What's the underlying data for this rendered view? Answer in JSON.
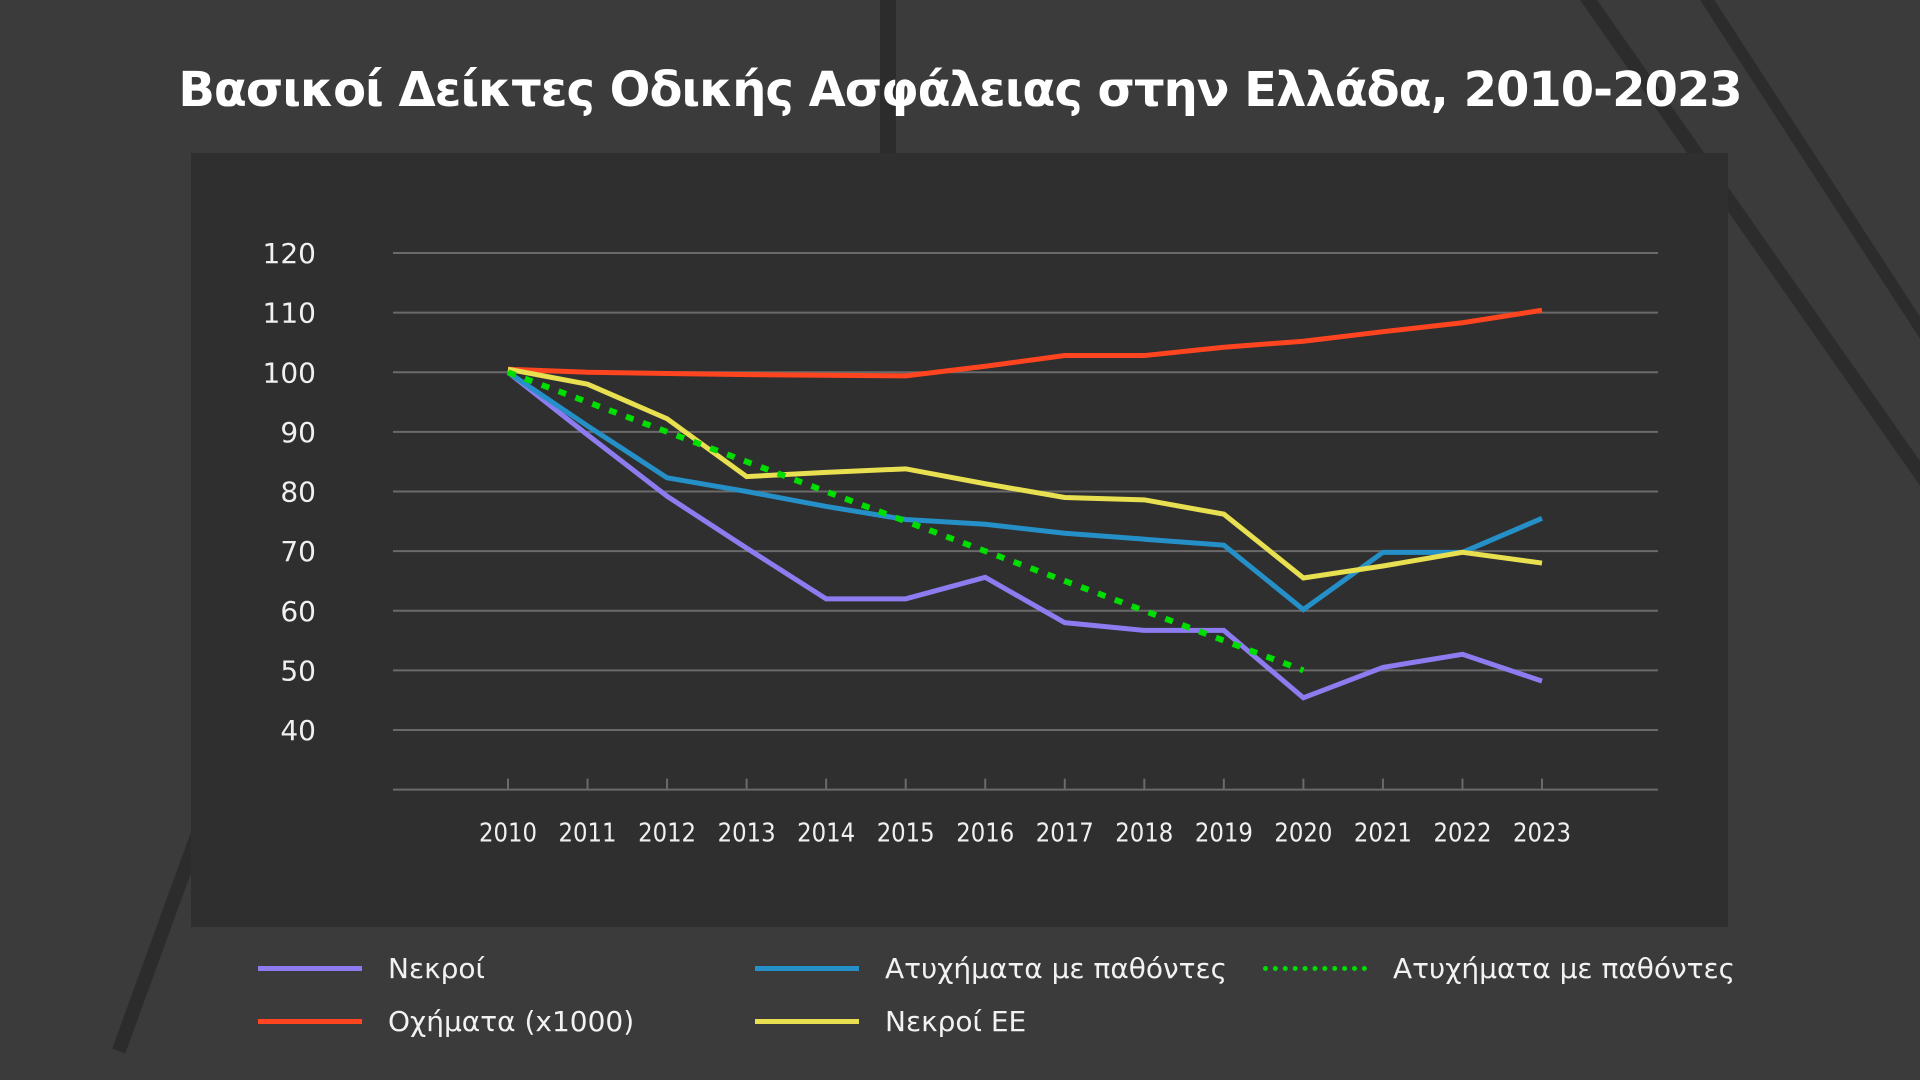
{
  "title": "Βασικοί Δείκτες Οδικής Ασφάλειας στην Ελλάδα, 2010-2023",
  "chart_data": {
    "type": "line",
    "title": "Βασικοί Δείκτες Οδικής Ασφάλειας στην Ελλάδα, 2010-2023",
    "xlabel": "",
    "ylabel": "",
    "x": [
      2010,
      2011,
      2012,
      2013,
      2014,
      2015,
      2016,
      2017,
      2018,
      2019,
      2020,
      2021,
      2022,
      2023
    ],
    "y_ticks": [
      40,
      50,
      60,
      70,
      80,
      90,
      100,
      110,
      120
    ],
    "ylim": [
      30,
      120
    ],
    "grid": true,
    "legend_position": "bottom",
    "series": [
      {
        "name": "Νεκροί",
        "color": "#8c7cf0",
        "dashed": false,
        "values": [
          100,
          89.5,
          79.2,
          70.5,
          62,
          62,
          65.6,
          58,
          56.7,
          56.7,
          45.4,
          50.5,
          52.7,
          48.2
        ]
      },
      {
        "name": "Οχήματα (x1000)",
        "color": "#ff4420",
        "dashed": false,
        "values": [
          100.5,
          100,
          99.8,
          99.6,
          99.5,
          99.4,
          101,
          102.8,
          102.8,
          104.2,
          105.2,
          106.8,
          108.3,
          110.4
        ]
      },
      {
        "name": "Ατυχήματα με παθόντες",
        "color": "#2590c8",
        "dashed": false,
        "values": [
          100,
          91,
          82.3,
          80,
          77.5,
          75.3,
          74.5,
          73,
          72,
          71,
          60.2,
          69.8,
          69.8,
          75.5
        ]
      },
      {
        "name": "Νεκροί ΕΕ",
        "color": "#e8e050",
        "dashed": false,
        "values": [
          100.5,
          98,
          92.2,
          82.5,
          83.2,
          83.8,
          81.3,
          79,
          78.6,
          76.2,
          65.5,
          67.5,
          69.8,
          68
        ]
      },
      {
        "name": "Ατυχήματα με παθόντες",
        "color": "#00dd00",
        "dashed": true,
        "values": [
          100,
          95,
          90,
          85,
          80,
          75,
          70,
          65,
          60,
          55,
          50,
          null,
          null,
          null
        ]
      }
    ]
  },
  "legend": [
    {
      "label": "Νεκροί",
      "color": "#8c7cf0",
      "dashed": false
    },
    {
      "label": "Ατυχήματα με παθόντες",
      "color": "#2590c8",
      "dashed": false
    },
    {
      "label": "Ατυχήματα με παθόντες",
      "color": "#00dd00",
      "dashed": true
    },
    {
      "label": "Οχήματα (x1000)",
      "color": "#ff4420",
      "dashed": false
    },
    {
      "label": "Νεκροί ΕΕ",
      "color": "#e8e050",
      "dashed": false
    }
  ]
}
